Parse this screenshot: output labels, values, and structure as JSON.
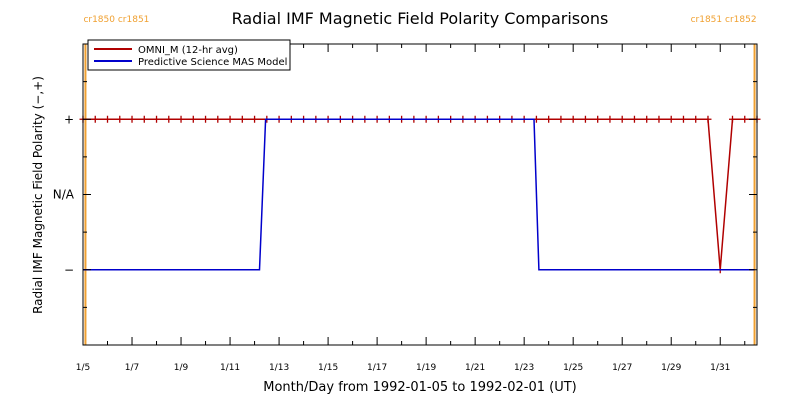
{
  "chart_data": {
    "type": "line",
    "title": "Radial IMF Magnetic Field Polarity Comparisons",
    "xlabel": "Month/Day from 1992-01-05 to 1992-02-01 (UT)",
    "ylabel": "Radial IMF Magnetic Field Polarity (−,+)",
    "x_range_days": [
      0,
      27.5
    ],
    "x_start_date": "1992-01-05",
    "x_ticks": [
      {
        "day": 0,
        "label": "1/5"
      },
      {
        "day": 2,
        "label": "1/7"
      },
      {
        "day": 4,
        "label": "1/9"
      },
      {
        "day": 6,
        "label": "1/11"
      },
      {
        "day": 8,
        "label": "1/13"
      },
      {
        "day": 10,
        "label": "1/15"
      },
      {
        "day": 12,
        "label": "1/17"
      },
      {
        "day": 14,
        "label": "1/19"
      },
      {
        "day": 16,
        "label": "1/21"
      },
      {
        "day": 18,
        "label": "1/23"
      },
      {
        "day": 20,
        "label": "1/25"
      },
      {
        "day": 22,
        "label": "1/27"
      },
      {
        "day": 24,
        "label": "1/29"
      },
      {
        "day": 26,
        "label": "1/31"
      }
    ],
    "ylim": [
      -2,
      2
    ],
    "y_ticks": [
      {
        "value": 1,
        "label": "+"
      },
      {
        "value": 0,
        "label": "N/A"
      },
      {
        "value": -1,
        "label": "−"
      }
    ],
    "legend_position": "top-left",
    "carrington_markers": [
      {
        "day": 0.1,
        "left_label": "cr1850",
        "right_label": "cr1851",
        "position": "left",
        "color": "#f0a030"
      },
      {
        "day": 27.4,
        "left_label": "cr1851",
        "right_label": "cr1852",
        "position": "right",
        "color": "#f0a030"
      }
    ],
    "series": [
      {
        "name": "OMNI_M (12-hr avg)",
        "color": "#b00000",
        "marker": "plus",
        "points": [
          [
            0,
            1
          ],
          [
            0.5,
            1
          ],
          [
            1,
            1
          ],
          [
            1.5,
            1
          ],
          [
            2,
            1
          ],
          [
            2.5,
            1
          ],
          [
            3,
            1
          ],
          [
            3.5,
            1
          ],
          [
            4,
            1
          ],
          [
            4.5,
            1
          ],
          [
            5,
            1
          ],
          [
            5.5,
            1
          ],
          [
            6,
            1
          ],
          [
            6.5,
            1
          ],
          [
            7,
            1
          ],
          [
            7.5,
            1
          ],
          [
            8,
            1
          ],
          [
            8.5,
            1
          ],
          [
            9,
            1
          ],
          [
            9.5,
            1
          ],
          [
            10,
            1
          ],
          [
            10.5,
            1
          ],
          [
            11,
            1
          ],
          [
            11.5,
            1
          ],
          [
            12,
            1
          ],
          [
            12.5,
            1
          ],
          [
            13,
            1
          ],
          [
            13.5,
            1
          ],
          [
            14,
            1
          ],
          [
            14.5,
            1
          ],
          [
            15,
            1
          ],
          [
            15.5,
            1
          ],
          [
            16,
            1
          ],
          [
            16.5,
            1
          ],
          [
            17,
            1
          ],
          [
            17.5,
            1
          ],
          [
            18,
            1
          ],
          [
            18.5,
            1
          ],
          [
            19,
            1
          ],
          [
            19.5,
            1
          ],
          [
            20,
            1
          ],
          [
            20.5,
            1
          ],
          [
            21,
            1
          ],
          [
            21.5,
            1
          ],
          [
            22,
            1
          ],
          [
            22.5,
            1
          ],
          [
            23,
            1
          ],
          [
            23.5,
            1
          ],
          [
            24,
            1
          ],
          [
            24.5,
            1
          ],
          [
            25,
            1
          ],
          [
            25.5,
            1
          ],
          [
            26,
            -1
          ],
          [
            26.5,
            1
          ],
          [
            27,
            1
          ],
          [
            27.5,
            1
          ]
        ]
      },
      {
        "name": "Predictive Science MAS Model",
        "color": "#0000cc",
        "marker": "none",
        "points": [
          [
            0,
            -1
          ],
          [
            7.2,
            -1
          ],
          [
            7.45,
            1
          ],
          [
            18.4,
            1
          ],
          [
            18.6,
            -1
          ],
          [
            27.4,
            -1
          ]
        ]
      }
    ]
  }
}
